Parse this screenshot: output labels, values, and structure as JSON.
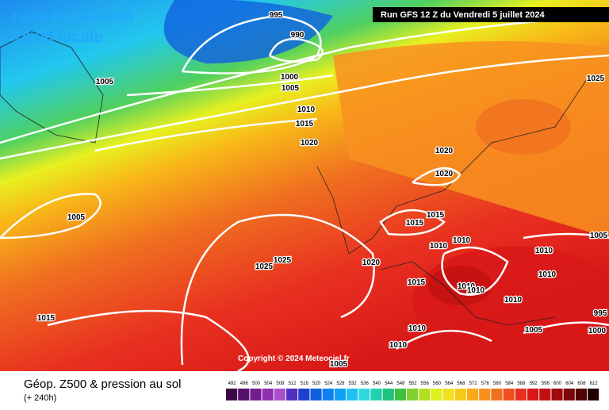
{
  "header": {
    "date": "Lundi 15 juillet 2024",
    "time": "14:00 locale",
    "run": "Run GFS 12 Z du Vendredi 5 juillet 2024"
  },
  "copyright": "Copyright © 2024 Meteociel.fr",
  "footer": {
    "title": "Géop. Z500 & pression au sol",
    "lead": "(+ 240h)"
  },
  "isobar_labels": [
    "995",
    "990",
    "1005",
    "1000",
    "1005",
    "1010",
    "1015",
    "1020",
    "1025",
    "1020",
    "1020",
    "1005",
    "1015",
    "1015",
    "1025",
    "1025",
    "1020",
    "1010",
    "1010",
    "1015",
    "1010",
    "1010",
    "1010",
    "1010",
    "1010",
    "1005",
    "995",
    "1000",
    "1005",
    "1010",
    "1010",
    "1005",
    "1015"
  ],
  "legend": {
    "ticks": [
      492,
      496,
      500,
      504,
      508,
      512,
      516,
      520,
      524,
      528,
      532,
      536,
      540,
      544,
      548,
      552,
      556,
      560,
      564,
      568,
      572,
      576,
      580,
      584,
      588,
      592,
      596,
      600,
      604,
      608,
      612
    ],
    "colors": [
      "#3b0a45",
      "#55106a",
      "#731c90",
      "#9030b0",
      "#a850cc",
      "#5030c0",
      "#2040d0",
      "#1060e0",
      "#1080f0",
      "#10a0f0",
      "#20c0f0",
      "#30d8e0",
      "#20d0b0",
      "#20c080",
      "#40c040",
      "#80d030",
      "#b0e020",
      "#e0f020",
      "#f0e020",
      "#f8c818",
      "#f8a818",
      "#f89020",
      "#f07020",
      "#f05020",
      "#e83020",
      "#d81818",
      "#c01010",
      "#a00c0c",
      "#800808",
      "#500404",
      "#200000"
    ]
  }
}
